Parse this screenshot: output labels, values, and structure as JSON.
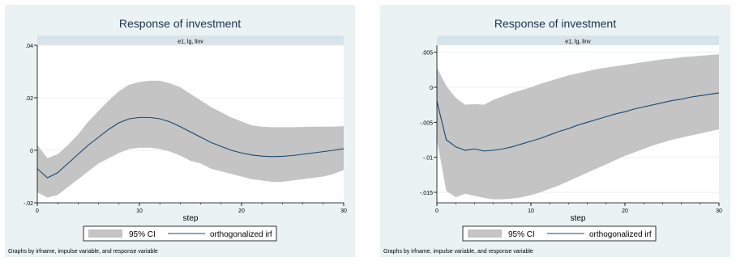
{
  "colors": {
    "background": "#eaf2f3",
    "plot_background": "#ffffff",
    "strip": "#d8e4ea",
    "ci_band": "#c4c4c4",
    "irf_line": "#1a476f",
    "title_text": "#1e3050"
  },
  "chart_data": [
    {
      "type": "area",
      "title": "Response of investment",
      "subtitle": "e1, lg, linv",
      "xlabel": "step",
      "ylabel": "",
      "xlim": [
        0,
        30
      ],
      "ylim": [
        -0.02,
        0.04
      ],
      "x_ticks": [
        0,
        10,
        20,
        30
      ],
      "x_tick_labels": [
        "0",
        "10",
        "20",
        "30"
      ],
      "y_ticks": [
        -0.02,
        0,
        0.02,
        0.04
      ],
      "y_tick_labels": [
        "-.02",
        "0",
        ".02",
        ".04"
      ],
      "grid": true,
      "legend_position": "bottom",
      "note": "Graphs by irfname, impulse variable, and response variable",
      "x": [
        0,
        1,
        2,
        3,
        4,
        5,
        6,
        7,
        8,
        9,
        10,
        11,
        12,
        13,
        14,
        15,
        16,
        17,
        18,
        19,
        20,
        21,
        22,
        23,
        24,
        25,
        26,
        27,
        28,
        29,
        30
      ],
      "series": [
        {
          "name": "95% CI",
          "lower": [
            -0.016,
            -0.018,
            -0.017,
            -0.014,
            -0.011,
            -0.008,
            -0.005,
            -0.003,
            -0.001,
            0.0005,
            0.001,
            0.001,
            0.0005,
            -0.0005,
            -0.002,
            -0.004,
            -0.005,
            -0.007,
            -0.008,
            -0.009,
            -0.01,
            -0.011,
            -0.0115,
            -0.012,
            -0.012,
            -0.0115,
            -0.011,
            -0.0105,
            -0.01,
            -0.009,
            -0.0075
          ],
          "upper": [
            0.002,
            -0.003,
            -0.0015,
            0.002,
            0.006,
            0.011,
            0.015,
            0.019,
            0.0225,
            0.025,
            0.026,
            0.0265,
            0.0265,
            0.0255,
            0.024,
            0.0215,
            0.019,
            0.0165,
            0.0145,
            0.0125,
            0.011,
            0.0095,
            0.009,
            0.0088,
            0.0088,
            0.0088,
            0.0089,
            0.009,
            0.009,
            0.009,
            0.0092
          ]
        },
        {
          "name": "orthogonalized irf",
          "values": [
            -0.007,
            -0.0105,
            -0.0085,
            -0.005,
            -0.0015,
            0.002,
            0.005,
            0.008,
            0.0105,
            0.012,
            0.0125,
            0.0125,
            0.012,
            0.0108,
            0.009,
            0.007,
            0.005,
            0.003,
            0.0015,
            0.0,
            -0.001,
            -0.0018,
            -0.0022,
            -0.0024,
            -0.0023,
            -0.002,
            -0.0015,
            -0.001,
            -0.0005,
            0.0,
            0.0006
          ]
        }
      ]
    },
    {
      "type": "area",
      "title": "Response of investment",
      "subtitle": "e1, lg, linv",
      "xlabel": "step",
      "ylabel": "",
      "xlim": [
        0,
        30
      ],
      "ylim": [
        -0.0165,
        0.006
      ],
      "x_ticks": [
        0,
        10,
        20,
        30
      ],
      "x_tick_labels": [
        "0",
        "10",
        "20",
        "30"
      ],
      "y_ticks": [
        -0.015,
        -0.01,
        -0.005,
        0,
        0.005
      ],
      "y_tick_labels": [
        "-.015",
        "-.01",
        "-.005",
        "0",
        ".005"
      ],
      "grid": true,
      "legend_position": "bottom",
      "note": "Graphs by irfname, impulse variable, and response variable",
      "x": [
        0,
        1,
        2,
        3,
        4,
        5,
        6,
        7,
        8,
        9,
        10,
        11,
        12,
        13,
        14,
        15,
        16,
        17,
        18,
        19,
        20,
        21,
        22,
        23,
        24,
        25,
        26,
        27,
        28,
        29,
        30
      ],
      "series": [
        {
          "name": "95% CI",
          "lower": [
            -0.0075,
            -0.0148,
            -0.0157,
            -0.0152,
            -0.0155,
            -0.0158,
            -0.016,
            -0.016,
            -0.0159,
            -0.0157,
            -0.0154,
            -0.015,
            -0.0145,
            -0.014,
            -0.0134,
            -0.0128,
            -0.0122,
            -0.0116,
            -0.011,
            -0.0104,
            -0.0098,
            -0.0093,
            -0.0088,
            -0.0083,
            -0.0079,
            -0.0075,
            -0.0072,
            -0.0069,
            -0.0066,
            -0.0063,
            -0.006
          ],
          "upper": [
            0.0028,
            0.0002,
            -0.0015,
            -0.0025,
            -0.0024,
            -0.0025,
            -0.0018,
            -0.0013,
            -0.0008,
            -0.0004,
            0.0,
            0.0005,
            0.0009,
            0.0013,
            0.0017,
            0.002,
            0.0023,
            0.0026,
            0.0028,
            0.003,
            0.0032,
            0.0034,
            0.0036,
            0.0038,
            0.004,
            0.0041,
            0.0043,
            0.0044,
            0.0045,
            0.0046,
            0.0047
          ]
        },
        {
          "name": "orthogonalized irf",
          "values": [
            -0.002,
            -0.0075,
            -0.0085,
            -0.009,
            -0.0088,
            -0.0091,
            -0.009,
            -0.0088,
            -0.0085,
            -0.0081,
            -0.0077,
            -0.0073,
            -0.0068,
            -0.0063,
            -0.0059,
            -0.0054,
            -0.005,
            -0.0046,
            -0.0042,
            -0.0038,
            -0.0035,
            -0.0031,
            -0.0028,
            -0.0025,
            -0.0022,
            -0.0019,
            -0.0017,
            -0.0014,
            -0.0012,
            -0.001,
            -0.0008
          ]
        }
      ]
    }
  ]
}
